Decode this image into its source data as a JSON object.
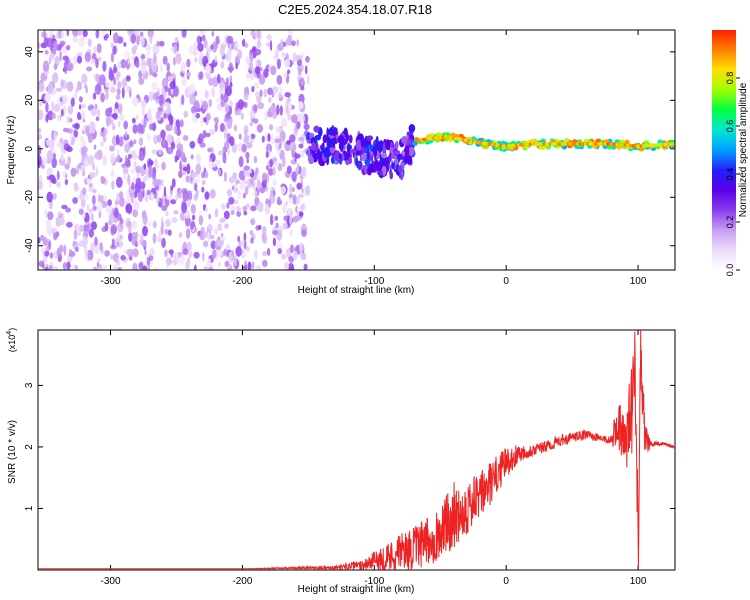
{
  "title": "C2E5.2024.354.18.07.R18",
  "colors": {
    "snr_line": "#ee2222",
    "axes": "#000000",
    "colorbar": [
      "#ffffff",
      "#ecdcfa",
      "#c89cf0",
      "#8a3cf0",
      "#5a00e8",
      "#2020ff",
      "#00a0ff",
      "#00e8d0",
      "#00ff40",
      "#a0ff00",
      "#ffe000",
      "#ff8000",
      "#ff2000"
    ]
  },
  "chart_data": [
    {
      "type": "heatmap",
      "title": "C2E5.2024.354.18.07.R18",
      "xlabel": "Height of straight line (km)",
      "ylabel": "Frequency (Hz)",
      "xlim": [
        -355,
        128
      ],
      "ylim": [
        -50,
        49
      ],
      "xticks": [
        -300,
        -200,
        -100,
        0,
        100
      ],
      "yticks": [
        -40,
        -20,
        0,
        20,
        40
      ],
      "colorbar": {
        "label": "Normalized spectral amplitude",
        "range": [
          0,
          1
        ],
        "ticks": [
          0.0,
          0.2,
          0.4,
          0.6,
          0.8
        ]
      },
      "regions": [
        {
          "x": [
            -355,
            -150
          ],
          "freq": [
            -50,
            49
          ],
          "amplitude": [
            0.05,
            0.25
          ],
          "description_level": "noise"
        },
        {
          "x": [
            -150,
            -70
          ],
          "freq": [
            -15,
            8
          ],
          "amplitude": [
            0.2,
            0.45
          ]
        },
        {
          "x": [
            -70,
            128
          ],
          "freq": [
            0,
            5
          ],
          "amplitude": [
            0.5,
            0.95
          ]
        }
      ],
      "ridge": {
        "x": [
          -185,
          -150,
          -120,
          -100,
          -80,
          -70,
          -60,
          -45,
          -35,
          -25,
          -15,
          0,
          20,
          40,
          60,
          80,
          100,
          128
        ],
        "freq": [
          3,
          2,
          0,
          -3,
          -5,
          3,
          4,
          5,
          4,
          3,
          2,
          1,
          2,
          2,
          2,
          2,
          1,
          2
        ]
      }
    },
    {
      "type": "line",
      "xlabel": "Height of straight line (km)",
      "ylabel": "SNR (10 * v/v)",
      "ylabel_scale": "(x10",
      "ylabel_scale_exp": "4",
      "ylabel_scale_close": ")",
      "xlim": [
        -355,
        128
      ],
      "ylim": [
        0,
        3.9
      ],
      "xticks": [
        -300,
        -200,
        -100,
        0,
        100
      ],
      "yticks": [
        1,
        2,
        3
      ],
      "series": [
        {
          "x": [
            -355,
            -200,
            -130,
            -110,
            -100,
            -90,
            -80,
            -70,
            -60,
            -50,
            -45,
            -40,
            -30,
            -20,
            -10,
            0,
            10,
            20,
            30,
            40,
            50,
            60,
            70,
            80,
            85,
            90,
            95,
            98,
            100,
            102,
            105,
            110,
            120,
            128
          ],
          "y": [
            0.02,
            0.02,
            0.04,
            0.08,
            0.15,
            0.2,
            0.3,
            0.35,
            0.45,
            0.6,
            0.75,
            0.9,
            1.0,
            1.2,
            1.45,
            1.75,
            1.9,
            1.95,
            2.0,
            2.1,
            2.15,
            2.2,
            2.15,
            2.1,
            2.4,
            2.0,
            2.6,
            3.4,
            0.3,
            3.9,
            2.1,
            2.05,
            2.05,
            2.0
          ],
          "noise_amplitude": [
            0,
            0,
            0.03,
            0.08,
            0.15,
            0.25,
            0.3,
            0.35,
            0.4,
            0.45,
            0.5,
            0.55,
            0.45,
            0.4,
            0.35,
            0.25,
            0.15,
            0.1,
            0.1,
            0.1,
            0.08,
            0.08,
            0.06,
            0.08,
            0.5,
            0.4,
            0.8,
            0.9,
            0.9,
            0.9,
            0.3,
            0.05,
            0.02,
            0.02
          ]
        }
      ]
    }
  ]
}
